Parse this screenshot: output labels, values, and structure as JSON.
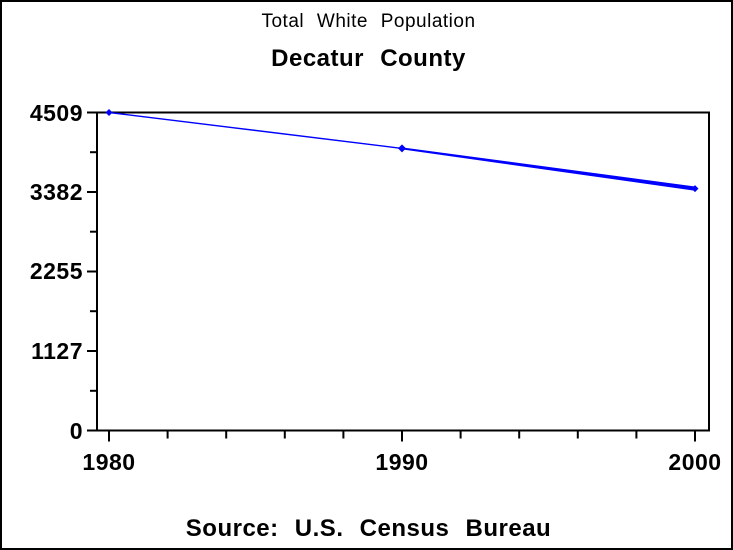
{
  "window": {
    "background_color": "#ffffff",
    "border_color": "#000000"
  },
  "chart_data": {
    "type": "line",
    "title": "Total White Population",
    "subtitle": "Decatur County",
    "footnote": "Source: U.S. Census Bureau",
    "x": [
      1980,
      1990,
      2000
    ],
    "series": [
      {
        "name": "Total White Population",
        "values": [
          4509,
          4000,
          3430
        ],
        "color": "#0000ff",
        "marker": "diamond"
      }
    ],
    "xlim": [
      1980,
      2000
    ],
    "ylim": [
      0,
      4509
    ],
    "x_tick_labels": [
      "1980",
      "1990",
      "2000"
    ],
    "x_minor_tick_step_years": 2,
    "y_tick_values": [
      0,
      1127,
      2255,
      3382,
      4509
    ],
    "y_tick_labels": [
      "0",
      "1127",
      "2255",
      "3382",
      "4509"
    ],
    "y_minor_ticks": "midpoints",
    "grid": false,
    "legend": false,
    "frame": true,
    "axis_color": "#000000"
  }
}
